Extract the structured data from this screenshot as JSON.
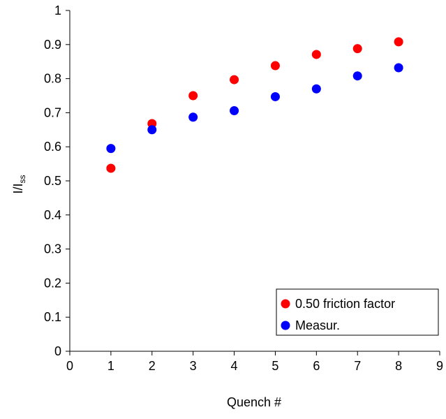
{
  "chart_data": {
    "type": "scatter",
    "xlabel": "Quench #",
    "ylabel": {
      "main": "I/I",
      "sub": "ss"
    },
    "xlim": [
      0,
      9
    ],
    "ylim": [
      0,
      1
    ],
    "x_ticks": [
      "0",
      "1",
      "2",
      "3",
      "4",
      "5",
      "6",
      "7",
      "8",
      "9"
    ],
    "y_ticks": [
      "0",
      "0.1",
      "0.2",
      "0.3",
      "0.4",
      "0.5",
      "0.6",
      "0.7",
      "0.8",
      "0.9",
      "1"
    ],
    "grid": false,
    "legend_position": "bottom-right",
    "series": [
      {
        "name": "0.50 friction factor",
        "color": "#ff0000",
        "x": [
          1,
          2,
          3,
          4,
          5,
          6,
          7,
          8
        ],
        "y": [
          0.537,
          0.668,
          0.75,
          0.797,
          0.838,
          0.871,
          0.888,
          0.908
        ]
      },
      {
        "name": "Measur.",
        "color": "#0000ff",
        "x": [
          1,
          2,
          3,
          4,
          5,
          6,
          7,
          8
        ],
        "y": [
          0.595,
          0.65,
          0.687,
          0.706,
          0.747,
          0.77,
          0.808,
          0.832
        ]
      }
    ]
  }
}
